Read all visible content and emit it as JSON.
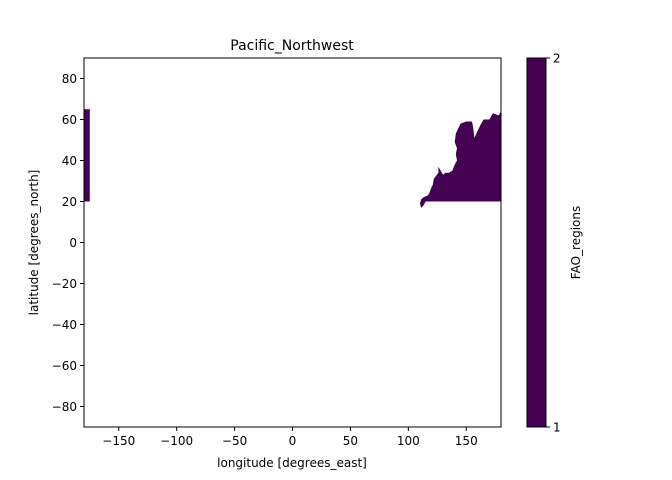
{
  "chart_data": {
    "type": "heatmap",
    "title": "Pacific_Northwest",
    "xlabel": "longitude [degrees_east]",
    "ylabel": "latitude [degrees_north]",
    "xlim": [
      -180,
      180
    ],
    "ylim": [
      -90,
      90
    ],
    "xticks": [
      -150,
      -100,
      -50,
      0,
      50,
      100,
      150
    ],
    "xtick_labels": [
      "−150",
      "−100",
      "−50",
      "0",
      "50",
      "100",
      "150"
    ],
    "yticks": [
      -80,
      -60,
      -40,
      -20,
      0,
      20,
      40,
      60,
      80
    ],
    "ytick_labels": [
      "−80",
      "−60",
      "−40",
      "−20",
      "0",
      "20",
      "40",
      "60",
      "80"
    ],
    "colorbar": {
      "label": "FAO_regions",
      "range": [
        1,
        2
      ],
      "ticks": [
        1,
        2
      ],
      "tick_labels": [
        "1",
        "2"
      ],
      "color": "#440154"
    },
    "grid": false,
    "region_color": "#440154",
    "regions": [
      {
        "name": "west",
        "polygon": [
          [
            -180,
            20
          ],
          [
            -180,
            65
          ],
          [
            -175,
            65
          ],
          [
            -175,
            20
          ]
        ]
      },
      {
        "name": "east",
        "polygon": [
          [
            180,
            20
          ],
          [
            180,
            64
          ],
          [
            178,
            62
          ],
          [
            173,
            63
          ],
          [
            170,
            60
          ],
          [
            165,
            60
          ],
          [
            162,
            57
          ],
          [
            157,
            51
          ],
          [
            156,
            56
          ],
          [
            155,
            59
          ],
          [
            150,
            59
          ],
          [
            145,
            58
          ],
          [
            141,
            53
          ],
          [
            140,
            49
          ],
          [
            142,
            46
          ],
          [
            141,
            43
          ],
          [
            142,
            40
          ],
          [
            140,
            38
          ],
          [
            138,
            35
          ],
          [
            135,
            34
          ],
          [
            132,
            34
          ],
          [
            130,
            33
          ],
          [
            128,
            35
          ],
          [
            126,
            37
          ],
          [
            126,
            34
          ],
          [
            122,
            31
          ],
          [
            121,
            28
          ],
          [
            120,
            27
          ],
          [
            118,
            24
          ],
          [
            117,
            23
          ],
          [
            113,
            22
          ],
          [
            111,
            21
          ],
          [
            110,
            19
          ],
          [
            111,
            17
          ],
          [
            113,
            18
          ],
          [
            115,
            20
          ],
          [
            118,
            20
          ]
        ]
      }
    ]
  }
}
